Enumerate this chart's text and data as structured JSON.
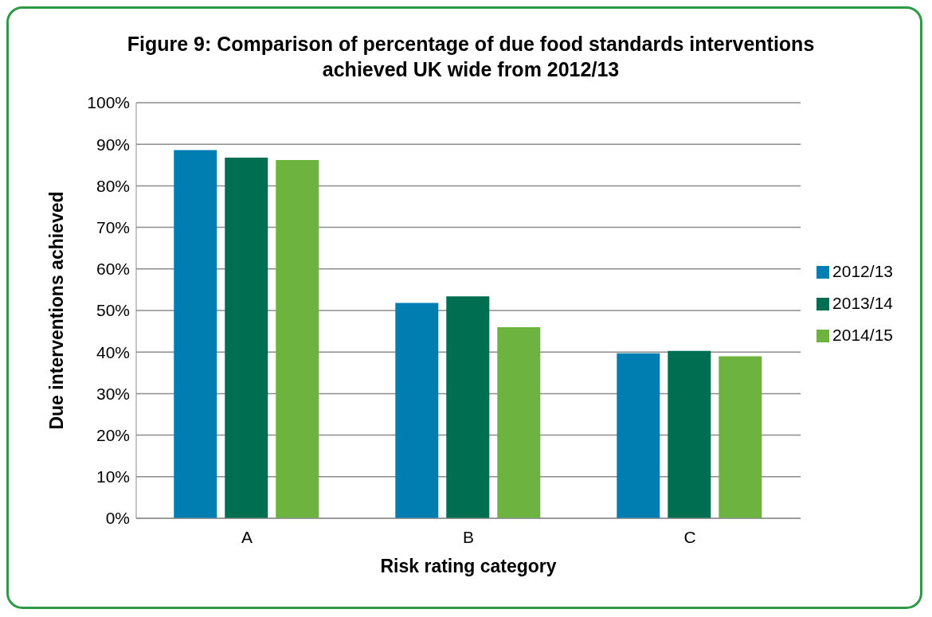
{
  "chart_data": {
    "type": "bar",
    "title": "Figure 9: Comparison of percentage of due food standards interventions achieved UK wide from 2012/13",
    "xlabel": "Risk rating category",
    "ylabel": "Due interventions achieved",
    "categories": [
      "A",
      "B",
      "C"
    ],
    "series": [
      {
        "name": "2012/13",
        "color": "#007db1",
        "values": [
          88.6,
          51.8,
          39.7
        ]
      },
      {
        "name": "2013/14",
        "color": "#006e51",
        "values": [
          86.8,
          53.4,
          40.3
        ]
      },
      {
        "name": "2014/15",
        "color": "#6db33f",
        "values": [
          86.2,
          46.0,
          39.0
        ]
      }
    ],
    "ylim": [
      0,
      100
    ],
    "yticks": [
      {
        "value": 0,
        "label": "0%"
      },
      {
        "value": 10,
        "label": "10%"
      },
      {
        "value": 20,
        "label": "20%"
      },
      {
        "value": 30,
        "label": "30%"
      },
      {
        "value": 40,
        "label": "40%"
      },
      {
        "value": 50,
        "label": "50%"
      },
      {
        "value": 60,
        "label": "60%"
      },
      {
        "value": 70,
        "label": "70%"
      },
      {
        "value": 80,
        "label": "80%"
      },
      {
        "value": 90,
        "label": "90%"
      },
      {
        "value": 100,
        "label": "100%"
      }
    ],
    "grid": "y",
    "legend": "right"
  }
}
